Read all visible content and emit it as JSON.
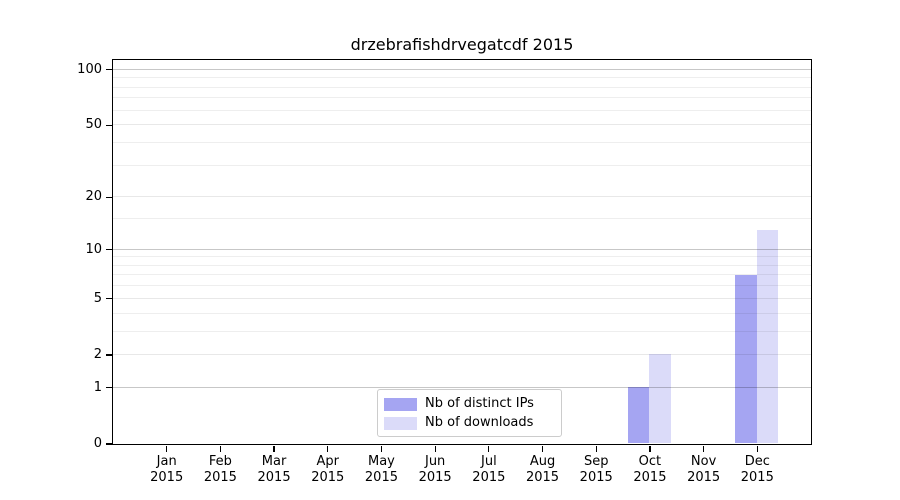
{
  "chart_data": {
    "type": "bar",
    "title": "drzebrafishdrvegatcdf 2015",
    "months": [
      "Jan",
      "Feb",
      "Mar",
      "Apr",
      "May",
      "Jun",
      "Jul",
      "Aug",
      "Sep",
      "Oct",
      "Nov",
      "Dec"
    ],
    "year_label": "2015",
    "series": [
      {
        "name": "Nb of distinct IPs",
        "color": "#a5a5f2",
        "values": [
          0,
          0,
          0,
          0,
          0,
          0,
          0,
          0,
          0,
          1,
          0,
          7
        ]
      },
      {
        "name": "Nb of downloads",
        "color": "#dbdbf9",
        "values": [
          0,
          0,
          0,
          0,
          0,
          0,
          0,
          0,
          0,
          2,
          0,
          13
        ]
      }
    ],
    "y_axis": {
      "scale": "log1p",
      "tick_labels": [
        100,
        50,
        20,
        10,
        5,
        2,
        1,
        0
      ],
      "decade_lines": [
        1,
        10,
        100
      ],
      "mid_lines": [
        2,
        5,
        20,
        50
      ],
      "minor_lines": [
        3,
        4,
        6,
        7,
        8,
        9,
        15,
        30,
        40,
        60,
        70,
        80,
        90
      ],
      "ylim": [
        0,
        113
      ]
    },
    "legend": {
      "position": "lower center"
    },
    "grid": true,
    "xlabel": "",
    "ylabel": ""
  }
}
